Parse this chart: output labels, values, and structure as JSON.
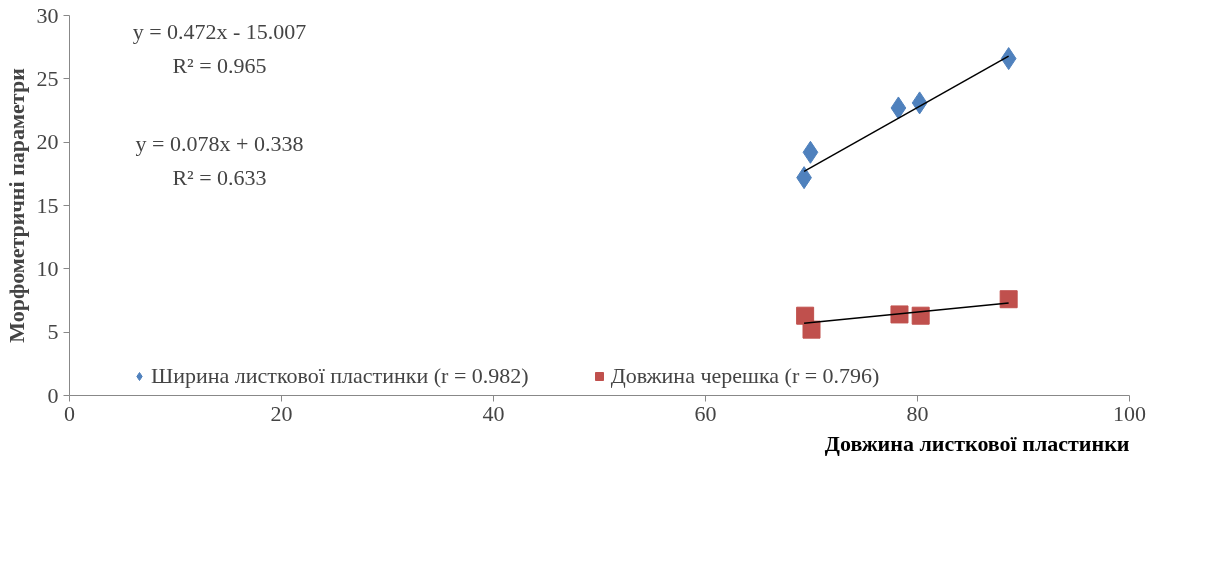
{
  "chart_data": {
    "type": "scatter",
    "xlabel": "Довжина листкової пластинки",
    "ylabel": "Морфометричні параметри",
    "xlim": [
      0,
      100
    ],
    "ylim": [
      0,
      30
    ],
    "xticks": [
      0,
      20,
      40,
      60,
      80,
      100
    ],
    "yticks": [
      0,
      5,
      10,
      15,
      20,
      25,
      30
    ],
    "grid": false,
    "legend": "bottom",
    "annotations": [
      "y = 0.472x - 15.007",
      "R² = 0.965",
      "y = 0.078x + 0.338",
      "R² = 0.633"
    ],
    "series": [
      {
        "name": "Ширина листкової пластинки (r = 0.982)",
        "color": "#4f81bd",
        "marker": "diamond",
        "x": [
          69.3,
          69.9,
          78.2,
          80.2,
          88.6
        ],
        "values": [
          17.2,
          19.2,
          22.7,
          23.1,
          26.6
        ]
      },
      {
        "name": "Довжина черешка (r = 0.796)",
        "color": "#c0504d",
        "marker": "square",
        "x": [
          69.4,
          70.0,
          78.3,
          80.3,
          88.6
        ],
        "values": [
          6.3,
          5.2,
          6.4,
          6.3,
          7.6
        ]
      },
      {
        "type": "line",
        "color": "#000000",
        "x": [
          69.3,
          88.6
        ],
        "values": [
          17.7,
          26.8
        ]
      },
      {
        "type": "line",
        "color": "#000000",
        "x": [
          69.3,
          88.6
        ],
        "values": [
          5.7,
          7.3
        ]
      }
    ]
  }
}
